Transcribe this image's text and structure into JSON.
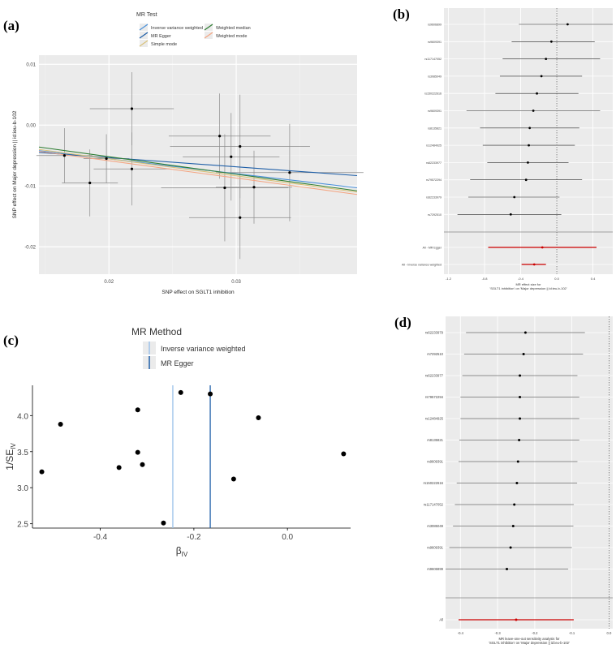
{
  "panels": {
    "a": {
      "panel_label": "(a)",
      "legend_title": "MR Test",
      "legend_items": [
        {
          "label": "Inverse variance weighted",
          "color": "#4a90d9"
        },
        {
          "label": "Weighted median",
          "color": "#2e7d32"
        },
        {
          "label": "MR Egger",
          "color": "#1f5fa8"
        },
        {
          "label": "Weighted mode",
          "color": "#f4a582"
        },
        {
          "label": "Simple mode",
          "color": "#d9c27a"
        }
      ]
    },
    "b": {
      "panel_label": "(b)"
    },
    "c": {
      "panel_label": "(c)",
      "legend_title": "MR Method",
      "legend_items": [
        {
          "label": "Inverse variance weighted",
          "color": "#9cc2ea"
        },
        {
          "label": "MR Egger",
          "color": "#1f5fa8"
        }
      ]
    },
    "d": {
      "panel_label": "(d)"
    }
  },
  "chart_data": [
    {
      "id": "a",
      "type": "scatter",
      "title": "",
      "xlabel": "SNP effect on SGLT1 inhibition",
      "ylabel": "SNP effect on Major depression || id:ieu-b-102",
      "xlim": [
        0.0145,
        0.0395
      ],
      "ylim": [
        -0.0245,
        0.0115
      ],
      "xticks": [
        0.02,
        0.03
      ],
      "xtick_labels": [
        "0.02",
        "0.03"
      ],
      "yticks": [
        0.01,
        0.0,
        -0.01,
        -0.02
      ],
      "ytick_labels": [
        "0.01",
        "0.00",
        "-0.01",
        "-0.02"
      ],
      "points": [
        {
          "x": 0.0165,
          "y": -0.005,
          "xerr": 0.0022,
          "yerr": 0.0045
        },
        {
          "x": 0.0185,
          "y": -0.0095,
          "xerr": 0.0022,
          "yerr": 0.0055
        },
        {
          "x": 0.0198,
          "y": -0.0055,
          "xerr": 0.0018,
          "yerr": 0.004
        },
        {
          "x": 0.0218,
          "y": 0.0027,
          "xerr": 0.0033,
          "yerr": 0.006
        },
        {
          "x": 0.0218,
          "y": -0.0072,
          "xerr": 0.003,
          "yerr": 0.006
        },
        {
          "x": 0.0287,
          "y": -0.0018,
          "xerr": 0.004,
          "yerr": 0.007
        },
        {
          "x": 0.0291,
          "y": -0.0103,
          "xerr": 0.005,
          "yerr": 0.0088
        },
        {
          "x": 0.0296,
          "y": -0.0052,
          "xerr": 0.0038,
          "yerr": 0.0072
        },
        {
          "x": 0.0303,
          "y": -0.0035,
          "xerr": 0.0055,
          "yerr": 0.0085
        },
        {
          "x": 0.0303,
          "y": -0.0152,
          "xerr": 0.004,
          "yerr": 0.0068
        },
        {
          "x": 0.0314,
          "y": -0.0102,
          "xerr": 0.003,
          "yerr": 0.006
        },
        {
          "x": 0.0342,
          "y": -0.0078,
          "xerr": 0.0058,
          "yerr": 0.008
        }
      ],
      "lines": [
        {
          "name": "Inverse variance weighted",
          "y_at_xmin": -0.0042,
          "y_at_xmax": -0.0103,
          "color": "#4a90d9"
        },
        {
          "name": "MR Egger",
          "y_at_xmin": -0.0045,
          "y_at_xmax": -0.0083,
          "color": "#1f5fa8"
        },
        {
          "name": "Weighted median",
          "y_at_xmin": -0.0036,
          "y_at_xmax": -0.0108,
          "color": "#2e7d32"
        },
        {
          "name": "Weighted mode",
          "y_at_xmin": -0.0043,
          "y_at_xmax": -0.0114,
          "color": "#f4a582"
        },
        {
          "name": "Simple mode",
          "y_at_xmin": -0.004,
          "y_at_xmax": -0.011,
          "color": "#d9c27a"
        }
      ]
    },
    {
      "id": "b",
      "type": "forest",
      "xlabel": "MR effect size for\n'SGLT1 inhibition' on 'Major depression || id:ieu-b-102'",
      "xlim": [
        -1.25,
        0.62
      ],
      "xticks": [
        -1.2,
        -0.8,
        -0.4,
        0.0,
        0.4
      ],
      "xtick_labels": [
        "-1.2",
        "-0.8",
        "-0.4",
        "0.0",
        "0.4"
      ],
      "rows": [
        {
          "snp": "rs9606899",
          "est": 0.12,
          "lo": -0.42,
          "hi": 0.64
        },
        {
          "snp": "rs9609391",
          "est": -0.06,
          "lo": -0.5,
          "hi": 0.42
        },
        {
          "snp": "rs117147052",
          "est": -0.12,
          "lo": -0.6,
          "hi": 0.48
        },
        {
          "snp": "rs3085049",
          "est": -0.17,
          "lo": -0.63,
          "hi": 0.28
        },
        {
          "snp": "rs150222616",
          "est": -0.22,
          "lo": -0.68,
          "hi": 0.24
        },
        {
          "snp": "rs9609391",
          "est": -0.26,
          "lo": -1.0,
          "hi": 0.48
        },
        {
          "snp": "rs8135821",
          "est": -0.3,
          "lo": -0.85,
          "hi": 0.25
        },
        {
          "snp": "rs12484925",
          "est": -0.31,
          "lo": -0.82,
          "hi": 0.2
        },
        {
          "snp": "rs62233977",
          "est": -0.32,
          "lo": -0.77,
          "hi": 0.13
        },
        {
          "snp": "rs79572294",
          "est": -0.34,
          "lo": -0.96,
          "hi": 0.28
        },
        {
          "snp": "rs62233979",
          "est": -0.47,
          "lo": -0.98,
          "hi": 0.03
        },
        {
          "snp": "rs7292510",
          "est": -0.51,
          "lo": -1.1,
          "hi": 0.05
        }
      ],
      "summary": [
        {
          "label": "All - MR Egger",
          "est": -0.16,
          "lo": -0.76,
          "hi": 0.44,
          "color": "#cc0000"
        },
        {
          "label": "All - Inverse variance weighted",
          "est": -0.25,
          "lo": -0.39,
          "hi": -0.12,
          "color": "#cc0000"
        }
      ]
    },
    {
      "id": "c",
      "type": "scatter",
      "xlabel": "βIV",
      "ylabel": "1/SEIV",
      "xlim": [
        -0.545,
        0.135
      ],
      "ylim": [
        2.44,
        4.42
      ],
      "xticks": [
        -0.4,
        -0.2,
        0.0
      ],
      "xtick_labels": [
        "-0.4",
        "-0.2",
        "0.0"
      ],
      "yticks": [
        2.5,
        3.0,
        3.5,
        4.0
      ],
      "ytick_labels": [
        "2.5",
        "3.0",
        "3.5",
        "4.0"
      ],
      "points": [
        {
          "x": -0.525,
          "y": 3.22
        },
        {
          "x": -0.485,
          "y": 3.88
        },
        {
          "x": -0.36,
          "y": 3.28
        },
        {
          "x": -0.32,
          "y": 4.08
        },
        {
          "x": -0.32,
          "y": 3.49
        },
        {
          "x": -0.31,
          "y": 3.32
        },
        {
          "x": -0.265,
          "y": 2.51
        },
        {
          "x": -0.228,
          "y": 4.32
        },
        {
          "x": -0.165,
          "y": 4.3
        },
        {
          "x": -0.115,
          "y": 3.12
        },
        {
          "x": -0.062,
          "y": 3.97
        },
        {
          "x": 0.12,
          "y": 3.47
        }
      ],
      "vlines": [
        {
          "name": "Inverse variance weighted",
          "x": -0.245,
          "color": "#9cc2ea"
        },
        {
          "name": "MR Egger",
          "x": -0.165,
          "color": "#1f5fa8"
        }
      ]
    },
    {
      "id": "d",
      "type": "forest",
      "xlabel": "MR leave-one-out sensitivity analysis for\n'SGLT1 inhibition' on 'Major depression || id:ieu-b-102'",
      "xlim": [
        -0.44,
        0.01
      ],
      "xticks": [
        -0.4,
        -0.3,
        -0.2,
        -0.1,
        0.0
      ],
      "xtick_labels": [
        "-0.4",
        "-0.3",
        "-0.2",
        "-0.1",
        "0.0"
      ],
      "rows": [
        {
          "snp": "rs62233979",
          "est": -0.225,
          "lo": -0.385,
          "hi": -0.065
        },
        {
          "snp": "rs7292510",
          "est": -0.23,
          "lo": -0.39,
          "hi": -0.07
        },
        {
          "snp": "rs62233977",
          "est": -0.24,
          "lo": -0.395,
          "hi": -0.085
        },
        {
          "snp": "rs79572294",
          "est": -0.24,
          "lo": -0.4,
          "hi": -0.08
        },
        {
          "snp": "rs12484925",
          "est": -0.24,
          "lo": -0.4,
          "hi": -0.08
        },
        {
          "snp": "rs8135821",
          "est": -0.242,
          "lo": -0.403,
          "hi": -0.08
        },
        {
          "snp": "rs9609391",
          "est": -0.245,
          "lo": -0.405,
          "hi": -0.085
        },
        {
          "snp": "rs150222616",
          "est": -0.248,
          "lo": -0.41,
          "hi": -0.086
        },
        {
          "snp": "rs117147052",
          "est": -0.255,
          "lo": -0.415,
          "hi": -0.095
        },
        {
          "snp": "rs3085049",
          "est": -0.258,
          "lo": -0.42,
          "hi": -0.096
        },
        {
          "snp": "rs9609391",
          "est": -0.265,
          "lo": -0.43,
          "hi": -0.1
        },
        {
          "snp": "rs9606899",
          "est": -0.275,
          "lo": -0.44,
          "hi": -0.11
        }
      ],
      "summary": [
        {
          "label": "All",
          "est": -0.25,
          "lo": -0.405,
          "hi": -0.095,
          "color": "#cc0000"
        }
      ]
    }
  ]
}
